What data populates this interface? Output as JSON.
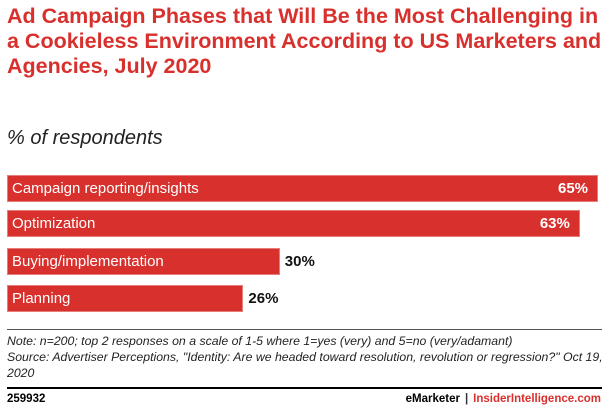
{
  "chart_data": {
    "type": "bar",
    "orientation": "horizontal",
    "title": "Ad Campaign Phases that Will Be the Most Challenging in a Cookieless Environment According to US Marketers and Agencies, July 2020",
    "subtitle": "% of respondents",
    "categories": [
      "Campaign reporting/insights",
      "Optimization",
      "Buying/implementation",
      "Planning"
    ],
    "values": [
      65,
      63,
      30,
      26
    ],
    "labels": [
      "65%",
      "63%",
      "30%",
      "26%"
    ],
    "xlim": [
      0,
      65
    ],
    "grid": false,
    "bar_color": "#d8302c"
  },
  "note": "Note: n=200; top 2 responses on a scale of 1-5 where 1=yes (very) and 5=no (very/adamant)",
  "source": "Source: Advertiser Perceptions, \"Identity: Are we headed toward resolution, revolution or regression?\" Oct 19, 2020",
  "footer": {
    "id": "259932",
    "brand1": "eMarketer",
    "sep": "|",
    "brand2": "InsiderIntelligence.com"
  }
}
